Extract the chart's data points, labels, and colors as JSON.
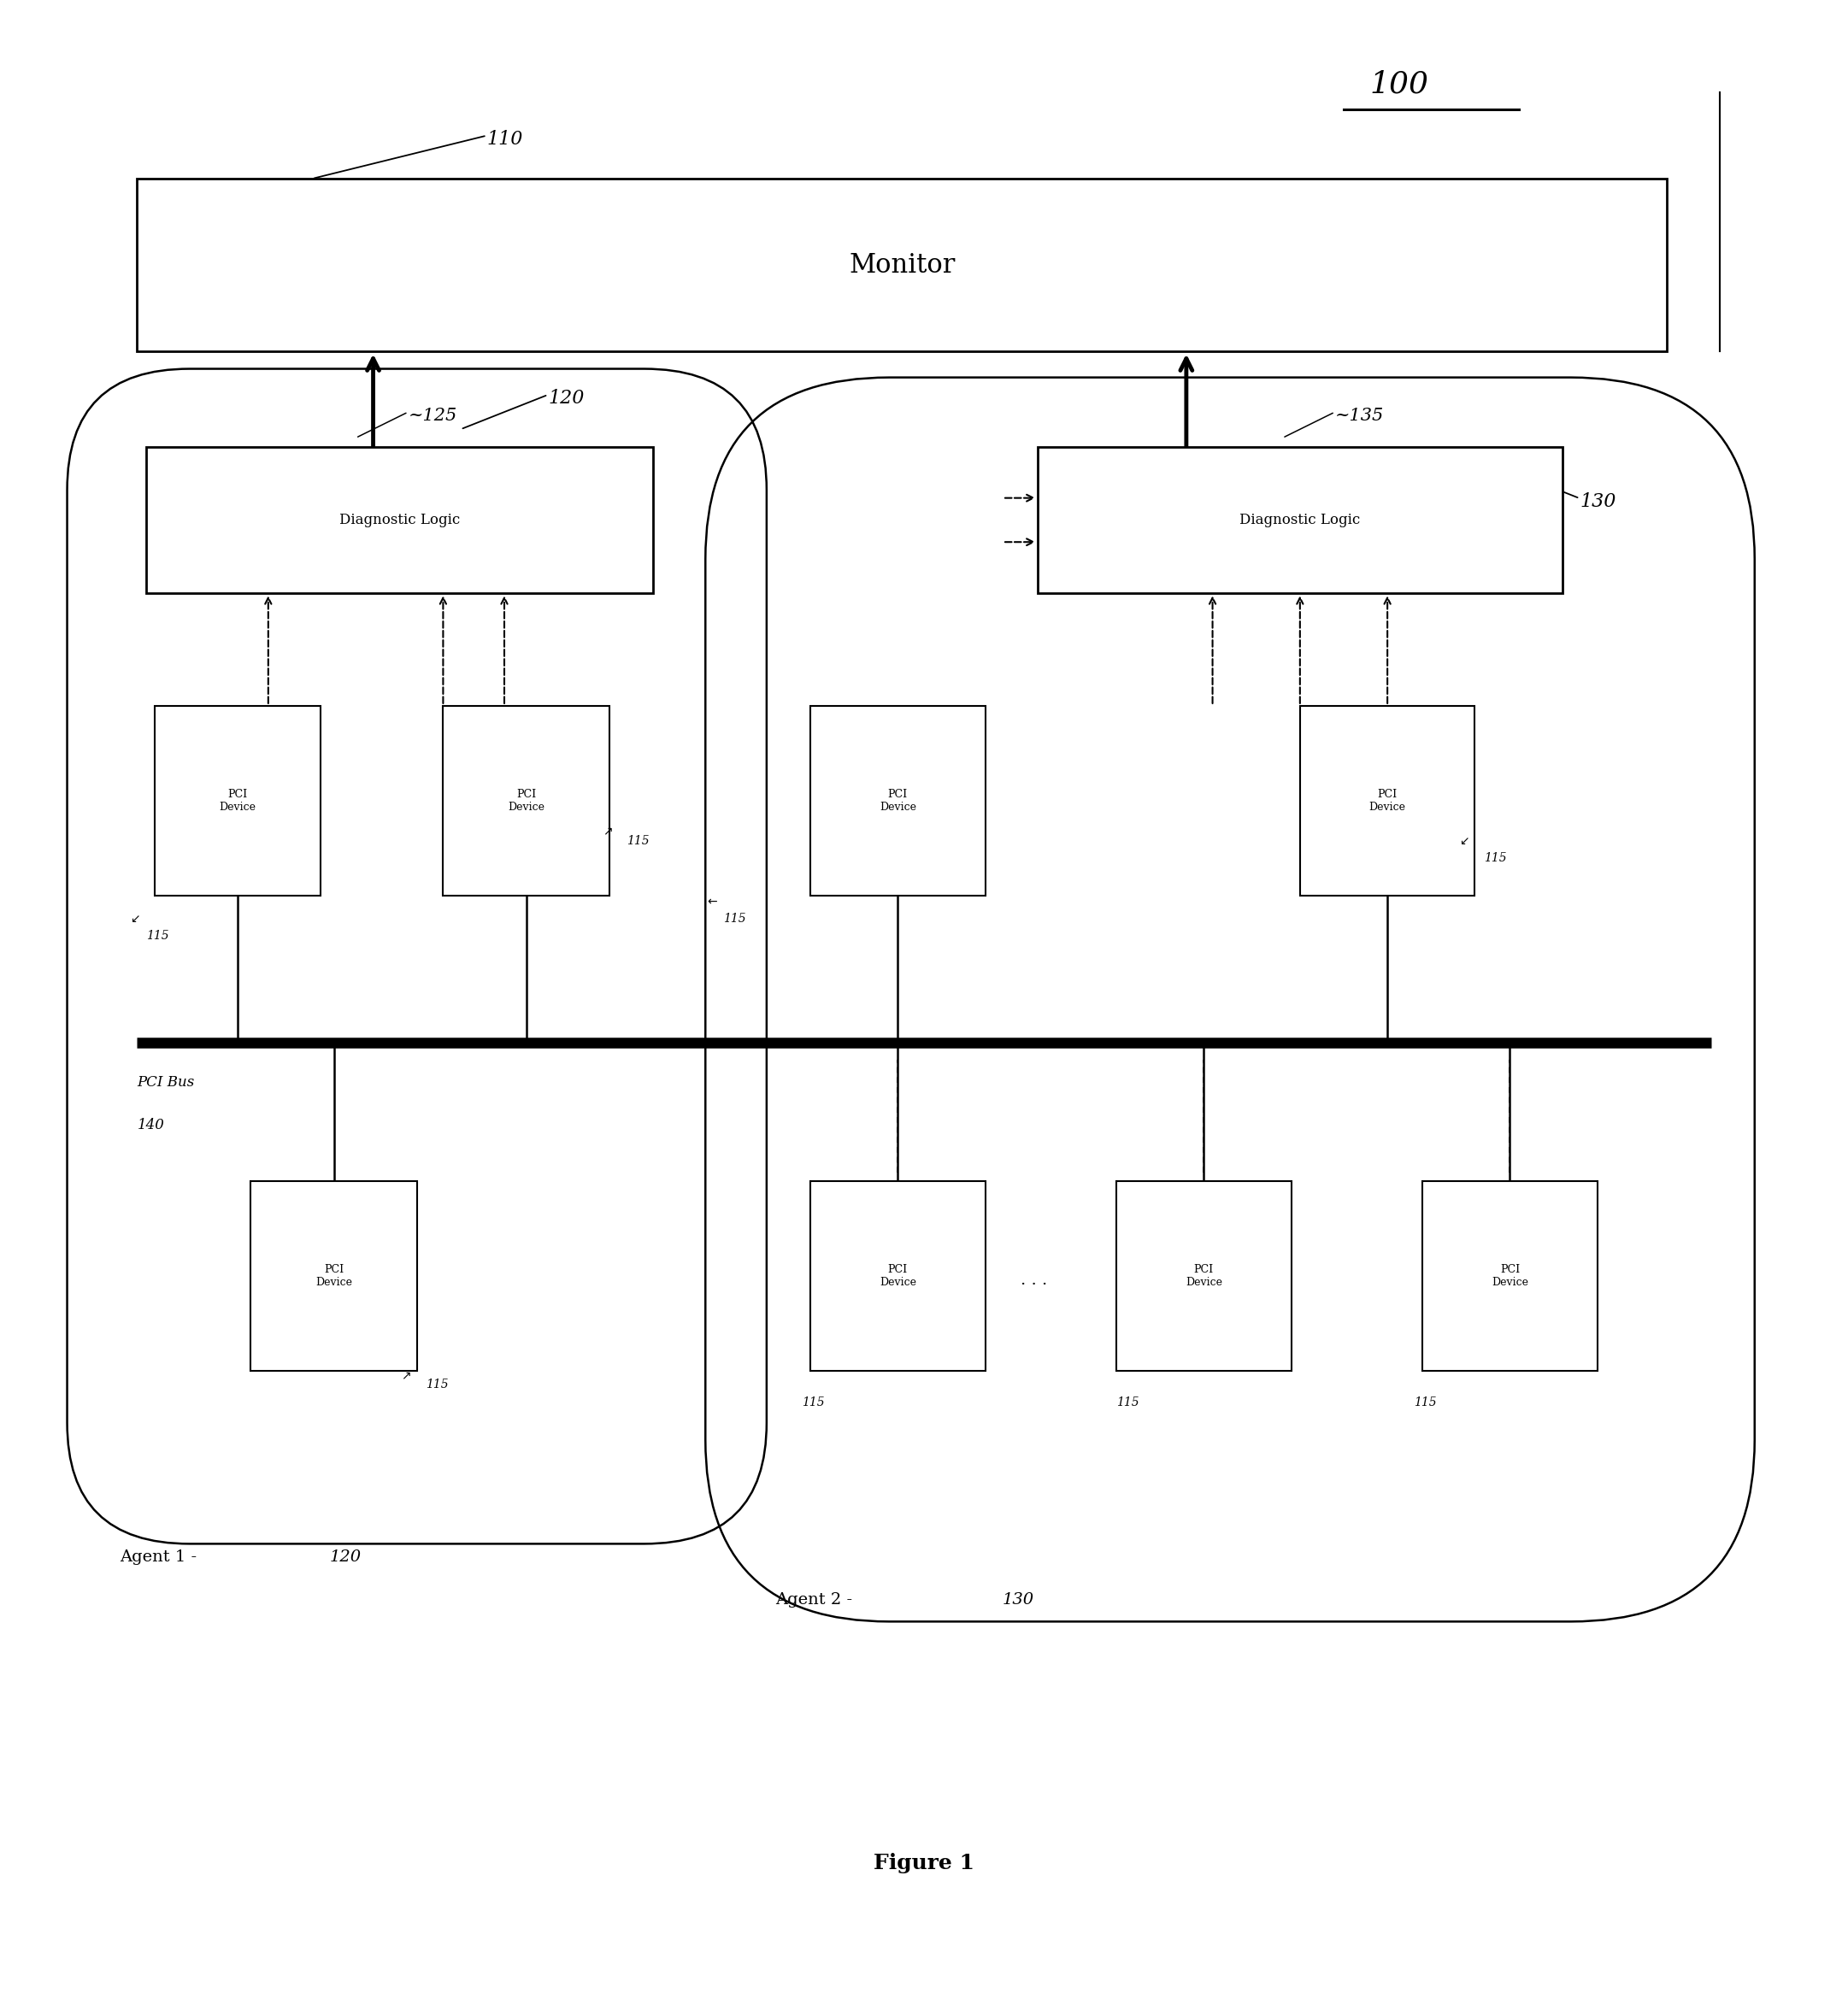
{
  "fig_width": 21.62,
  "fig_height": 23.39,
  "bg_color": "#ffffff",
  "title": "Figure 1",
  "ref_100": "100",
  "ref_110": "110",
  "ref_120": "120",
  "ref_125": "~125",
  "ref_130": "130",
  "ref_135": "~135",
  "ref_140_a": "PCI Bus",
  "ref_140_b": "140",
  "ref_115": "115",
  "monitor_label": "Monitor",
  "diag_logic_label": "Diagnostic Logic",
  "pci_device_label": "PCI\nDevice",
  "agent1_label": "Agent 1 -",
  "agent1_ref": "120",
  "agent2_label": "Agent 2 -",
  "agent2_ref": "130"
}
